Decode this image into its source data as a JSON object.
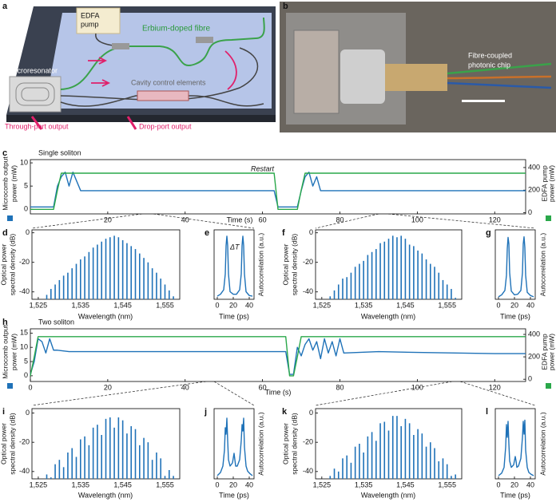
{
  "diagram": {
    "panel": "a",
    "pump": [
      "EDFA",
      "pump"
    ],
    "fibre": "Erbium-doped fibre",
    "resonator": "Microresonator",
    "control": "Cavity control elements",
    "through": "Through-port output",
    "drop": "Drop-port output"
  },
  "photo": {
    "panel": "b",
    "label": [
      "Fibre-coupled",
      "photonic chip"
    ]
  },
  "chart_data": [
    {
      "type": "line",
      "panel": "c",
      "title": "Single soliton",
      "annotation": "Restart",
      "xlabel": "Time (s)",
      "ylabel": [
        "Microcomb output",
        "power (mW)"
      ],
      "y2label": [
        "EDFA pump",
        "power (mW)"
      ],
      "xlim": [
        0,
        128
      ],
      "ylim": [
        -1,
        10.7
      ],
      "y2lim": [
        -10,
        470
      ],
      "xticks": [
        20,
        40,
        60,
        80,
        100,
        120
      ],
      "yticks": [
        0,
        5,
        10
      ],
      "y2ticks": [
        0,
        200,
        400
      ],
      "x": [
        0,
        6,
        7,
        8,
        9,
        10,
        11,
        12,
        13,
        20,
        30,
        40,
        50,
        60,
        63,
        64,
        69,
        70,
        71,
        72,
        73,
        74,
        75,
        80,
        90,
        100,
        110,
        120,
        128
      ],
      "series": [
        {
          "color": "#1f72b8",
          "values": [
            0.5,
            0.5,
            5,
            7,
            8,
            5,
            8,
            6,
            4,
            4,
            4,
            4,
            4,
            4,
            4,
            0.5,
            0.5,
            4,
            7,
            8,
            5,
            7,
            4,
            4,
            4,
            4,
            4,
            4,
            4
          ]
        },
        {
          "color": "#2aa84a",
          "axis": "y2",
          "values": [
            30,
            30,
            200,
            350,
            350,
            350,
            350,
            350,
            350,
            350,
            350,
            350,
            350,
            350,
            350,
            30,
            30,
            200,
            350,
            350,
            350,
            350,
            350,
            350,
            350,
            350,
            350,
            350,
            350
          ]
        }
      ]
    },
    {
      "type": "stem",
      "panel": "d",
      "xlabel": "Wavelength (nm)",
      "ylabel": [
        "Optical power",
        "spectral density (dB)"
      ],
      "xlim": [
        1523.5,
        1558.5
      ],
      "ylim": [
        -45,
        2
      ],
      "xticks": [
        {
          "value": 1525,
          "label": "1,525"
        },
        {
          "value": 1535,
          "label": "1,535"
        },
        {
          "value": 1545,
          "label": "1,545"
        },
        {
          "value": 1555,
          "label": "1,555"
        }
      ],
      "yticks": [
        0,
        -20,
        -40
      ],
      "color": "#1f72b8",
      "x": [
        1527,
        1528,
        1529,
        1530,
        1531,
        1532,
        1533,
        1534,
        1535,
        1536,
        1537,
        1538,
        1539,
        1540,
        1541,
        1542,
        1543,
        1544,
        1545,
        1546,
        1547,
        1548,
        1549,
        1550,
        1551,
        1552,
        1553,
        1554,
        1555,
        1556,
        1557
      ],
      "values": [
        -42,
        -38,
        -35,
        -32,
        -29,
        -27,
        -24,
        -21,
        -18,
        -16,
        -13,
        -10,
        -8,
        -6,
        -4,
        -3,
        -2,
        -3,
        -5,
        -7,
        -9,
        -11,
        -14,
        -17,
        -20,
        -24,
        -27,
        -31,
        -35,
        -39,
        -43
      ]
    },
    {
      "type": "line",
      "panel": "e",
      "xlabel": "Time (ps)",
      "y2label": [
        "Autocorrelation (a.u.)"
      ],
      "annotation": "ΔT",
      "xlim": [
        -4,
        46
      ],
      "ylim": [
        0,
        1.1
      ],
      "xticks": [
        0,
        20,
        40
      ],
      "x": [
        0,
        4,
        8,
        10,
        11,
        12,
        13,
        14,
        16,
        20,
        24,
        28,
        30,
        31,
        32,
        33,
        34,
        36,
        40,
        44
      ],
      "series": [
        {
          "color": "#1f72b8",
          "values": [
            0.05,
            0.08,
            0.15,
            0.4,
            0.85,
            1,
            0.85,
            0.4,
            0.12,
            0.08,
            0.08,
            0.15,
            0.4,
            0.85,
            1,
            0.85,
            0.4,
            0.12,
            0.06,
            0.05
          ]
        }
      ]
    },
    {
      "type": "stem",
      "panel": "f",
      "xlabel": "Wavelength (nm)",
      "ylabel": [
        "Optical power",
        "spectral density (dB)"
      ],
      "xlim": [
        1523.5,
        1558.5
      ],
      "ylim": [
        -45,
        2
      ],
      "xticks": [
        {
          "value": 1525,
          "label": "1,525"
        },
        {
          "value": 1535,
          "label": "1,535"
        },
        {
          "value": 1545,
          "label": "1,545"
        },
        {
          "value": 1555,
          "label": "1,555"
        }
      ],
      "yticks": [
        0,
        -20,
        -40
      ],
      "color": "#1f72b8",
      "x": [
        1527,
        1528,
        1529,
        1530,
        1531,
        1532,
        1533,
        1534,
        1535,
        1536,
        1537,
        1538,
        1539,
        1540,
        1541,
        1542,
        1543,
        1544,
        1545,
        1546,
        1547,
        1548,
        1549,
        1550,
        1551,
        1552,
        1553,
        1554,
        1555,
        1556,
        1557
      ],
      "values": [
        -43,
        -39,
        -35,
        -31,
        -30,
        -27,
        -23,
        -21,
        -19,
        -15,
        -13,
        -11,
        -7,
        -6,
        -4,
        -2,
        -3,
        -2,
        -4,
        -8,
        -9,
        -12,
        -14,
        -18,
        -21,
        -23,
        -27,
        -32,
        -35,
        -38,
        -44
      ]
    },
    {
      "type": "line",
      "panel": "g",
      "xlabel": "Time (ps)",
      "y2label": [
        "Autocorrelation (a.u.)"
      ],
      "xlim": [
        -4,
        46
      ],
      "ylim": [
        0,
        1.1
      ],
      "xticks": [
        0,
        20,
        40
      ],
      "x": [
        0,
        4,
        8,
        10,
        11,
        12,
        13,
        14,
        16,
        20,
        24,
        28,
        30,
        31,
        32,
        33,
        34,
        36,
        40,
        44
      ],
      "series": [
        {
          "color": "#1f72b8",
          "values": [
            0.04,
            0.07,
            0.14,
            0.38,
            0.8,
            0.98,
            0.88,
            0.42,
            0.13,
            0.07,
            0.08,
            0.14,
            0.42,
            0.88,
            0.99,
            0.82,
            0.38,
            0.11,
            0.06,
            0.04
          ]
        }
      ]
    },
    {
      "type": "line",
      "panel": "h",
      "title": "Two soliton",
      "xlabel": "Time (s)",
      "ylabel": [
        "Microcomb output",
        "power (mW)"
      ],
      "y2label": [
        "EDFA pump",
        "power (mW)"
      ],
      "xlim": [
        0,
        128
      ],
      "ylim": [
        -2,
        16.5
      ],
      "y2lim": [
        -20,
        450
      ],
      "xticks": [
        0,
        20,
        40,
        60,
        80,
        100,
        120
      ],
      "yticks": [
        0,
        5,
        10,
        15
      ],
      "y2ticks": [
        0,
        200,
        400
      ],
      "x": [
        0,
        1,
        2,
        3,
        4,
        5,
        6,
        7,
        10,
        20,
        40,
        60,
        66,
        67,
        68,
        69,
        70,
        71,
        72,
        73,
        74,
        75,
        76,
        77,
        78,
        79,
        80,
        81,
        90,
        100,
        110,
        120,
        128
      ],
      "series": [
        {
          "color": "#1f72b8",
          "values": [
            0.5,
            5,
            13,
            12,
            8,
            13,
            9,
            9,
            8.5,
            8.5,
            8.5,
            8.5,
            8.5,
            0.5,
            0.5,
            10,
            7,
            11,
            13,
            9,
            12,
            6,
            13,
            8,
            12,
            7,
            13,
            8,
            8.5,
            8.2,
            8,
            7.8,
            7.8
          ]
        },
        {
          "color": "#2aa84a",
          "axis": "y2",
          "values": [
            30,
            200,
            380,
            380,
            380,
            380,
            380,
            380,
            380,
            380,
            380,
            380,
            380,
            30,
            30,
            200,
            380,
            380,
            380,
            380,
            380,
            380,
            380,
            380,
            380,
            380,
            380,
            380,
            380,
            380,
            380,
            380,
            380
          ]
        }
      ]
    },
    {
      "type": "stem",
      "panel": "i",
      "xlabel": "Wavelength (nm)",
      "ylabel": [
        "Optical power",
        "spectral density (dB)"
      ],
      "xlim": [
        1523.5,
        1558.5
      ],
      "ylim": [
        -45,
        3
      ],
      "xticks": [
        {
          "value": 1525,
          "label": "1,525"
        },
        {
          "value": 1535,
          "label": "1,535"
        },
        {
          "value": 1545,
          "label": "1,545"
        },
        {
          "value": 1555,
          "label": "1,555"
        }
      ],
      "yticks": [
        0,
        -20,
        -40
      ],
      "color": "#1f72b8",
      "x": [
        1527,
        1528,
        1529,
        1530,
        1531,
        1532,
        1533,
        1534,
        1535,
        1536,
        1537,
        1538,
        1539,
        1540,
        1541,
        1542,
        1543,
        1544,
        1545,
        1546,
        1547,
        1548,
        1549,
        1550,
        1551,
        1552,
        1553,
        1554,
        1555,
        1556,
        1557
      ],
      "values": [
        -42,
        -44,
        -35,
        -32,
        -37,
        -27,
        -24,
        -30,
        -18,
        -16,
        -22,
        -10,
        -8,
        -15,
        -4,
        -3,
        -10,
        -3,
        -5,
        -14,
        -9,
        -11,
        -22,
        -17,
        -20,
        -32,
        -27,
        -31,
        -43,
        -39,
        -43
      ]
    },
    {
      "type": "line",
      "panel": "j",
      "xlabel": "Time (ps)",
      "y2label": [
        "Autocorrelation (a.u.)"
      ],
      "xlim": [
        -4,
        46
      ],
      "ylim": [
        0,
        1.1
      ],
      "xticks": [
        0,
        20,
        40
      ],
      "x": [
        0,
        4,
        7,
        9,
        10,
        11,
        12,
        13,
        14,
        16,
        19,
        21,
        22,
        23,
        25,
        28,
        30,
        31,
        32,
        33,
        34,
        36,
        38,
        41,
        44
      ],
      "series": [
        {
          "color": "#1f72b8",
          "values": [
            0.05,
            0.1,
            0.2,
            0.45,
            0.8,
            0.7,
            0.95,
            0.6,
            0.3,
            0.2,
            0.25,
            0.4,
            0.3,
            0.2,
            0.2,
            0.3,
            0.6,
            0.85,
            0.75,
            0.95,
            0.5,
            0.2,
            0.12,
            0.08,
            0.05
          ]
        }
      ]
    },
    {
      "type": "stem",
      "panel": "k",
      "xlabel": "Wavelength (nm)",
      "ylabel": [
        "Optical power",
        "spectral density (dB)"
      ],
      "xlim": [
        1523.5,
        1558.5
      ],
      "ylim": [
        -45,
        3
      ],
      "xticks": [
        {
          "value": 1525,
          "label": "1,525"
        },
        {
          "value": 1535,
          "label": "1,535"
        },
        {
          "value": 1545,
          "label": "1,545"
        },
        {
          "value": 1555,
          "label": "1,555"
        }
      ],
      "yticks": [
        0,
        -20,
        -40
      ],
      "color": "#1f72b8",
      "x": [
        1527,
        1528,
        1529,
        1530,
        1531,
        1532,
        1533,
        1534,
        1535,
        1536,
        1537,
        1538,
        1539,
        1540,
        1541,
        1542,
        1543,
        1544,
        1545,
        1546,
        1547,
        1548,
        1549,
        1550,
        1551,
        1552,
        1553,
        1554,
        1555,
        1556,
        1557
      ],
      "values": [
        -43,
        -38,
        -40,
        -31,
        -29,
        -34,
        -23,
        -21,
        -27,
        -16,
        -13,
        -19,
        -7,
        -6,
        -12,
        -2,
        -2,
        -9,
        -4,
        -7,
        -15,
        -11,
        -14,
        -23,
        -20,
        -24,
        -33,
        -31,
        -35,
        -43,
        -42
      ]
    },
    {
      "type": "line",
      "panel": "l",
      "xlabel": "Time (ps)",
      "y2label": [
        "Autocorrelation (a.u.)"
      ],
      "xlim": [
        -4,
        46
      ],
      "ylim": [
        0,
        1.1
      ],
      "xticks": [
        0,
        20,
        40
      ],
      "x": [
        0,
        4,
        7,
        9,
        10,
        11,
        12,
        13,
        14,
        16,
        19,
        21,
        22,
        23,
        25,
        28,
        30,
        31,
        32,
        33,
        34,
        36,
        38,
        41,
        44
      ],
      "series": [
        {
          "color": "#1f72b8",
          "values": [
            0.05,
            0.09,
            0.18,
            0.5,
            0.85,
            0.65,
            0.9,
            0.55,
            0.28,
            0.18,
            0.22,
            0.35,
            0.28,
            0.18,
            0.2,
            0.32,
            0.65,
            0.9,
            0.7,
            0.92,
            0.45,
            0.18,
            0.1,
            0.07,
            0.05
          ]
        }
      ]
    }
  ]
}
